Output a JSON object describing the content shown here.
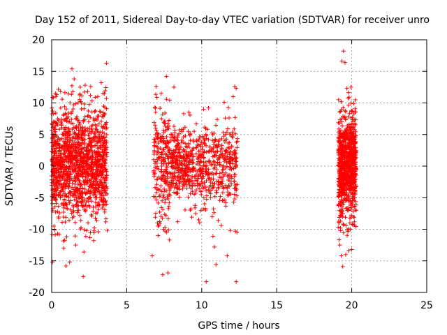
{
  "chart_data": {
    "type": "scatter",
    "title": "Day 152 of 2011, Sidereal Day-to-day VTEC variation (SDTVAR) for receiver unro",
    "xlabel": "GPS time / hours",
    "ylabel": "SDTVAR / TECUs",
    "xlim": [
      0,
      25
    ],
    "ylim": [
      -20,
      20
    ],
    "xticks": [
      0,
      5,
      10,
      15,
      20,
      25
    ],
    "yticks": [
      -20,
      -15,
      -10,
      -5,
      0,
      5,
      10,
      15,
      20
    ],
    "grid": true,
    "marker": "+",
    "color": "#ff0000",
    "series": [
      {
        "name": "SDTVAR",
        "points": [
          [
            0.05,
            -15.2
          ],
          [
            0.25,
            11.5
          ],
          [
            0.4,
            7.5
          ],
          [
            0.6,
            9.2
          ],
          [
            0.8,
            -13.0
          ],
          [
            0.95,
            -15.8
          ],
          [
            1.2,
            -15.2
          ],
          [
            1.35,
            15.4
          ],
          [
            1.6,
            -12.5
          ],
          [
            2.1,
            -17.5
          ],
          [
            2.15,
            -13.6
          ],
          [
            2.4,
            11.8
          ],
          [
            2.8,
            -11.8
          ],
          [
            3.3,
            13.2
          ],
          [
            3.65,
            16.3
          ],
          [
            3.7,
            -10.2
          ],
          [
            0.15,
            -9.5
          ],
          [
            0.5,
            -10.8
          ],
          [
            1.0,
            -11.2
          ],
          [
            1.9,
            12.5
          ],
          [
            2.6,
            12.6
          ],
          [
            3.1,
            -10.4
          ],
          [
            1.5,
            13.8
          ],
          [
            0.7,
            10.6
          ],
          [
            2.9,
            10.9
          ],
          [
            6.7,
            -14.2
          ],
          [
            6.8,
            -4.8
          ],
          [
            7.1,
            -9.5
          ],
          [
            7.3,
            11.5
          ],
          [
            7.4,
            -17.2
          ],
          [
            7.55,
            -10.3
          ],
          [
            7.65,
            14.2
          ],
          [
            7.75,
            -16.9
          ],
          [
            7.85,
            -11.7
          ],
          [
            8.15,
            12.5
          ],
          [
            8.4,
            -8.8
          ],
          [
            9.1,
            5.5
          ],
          [
            9.6,
            -7.5
          ],
          [
            9.8,
            -8.5
          ],
          [
            10.1,
            -6.8
          ],
          [
            10.3,
            -18.3
          ],
          [
            10.45,
            9.2
          ],
          [
            10.7,
            -8.0
          ],
          [
            10.75,
            -11.1
          ],
          [
            10.85,
            -12.8
          ],
          [
            10.95,
            -15.6
          ],
          [
            11.3,
            -9.4
          ],
          [
            11.5,
            10.1
          ],
          [
            11.7,
            -14.2
          ],
          [
            11.9,
            -10.2
          ],
          [
            12.1,
            11.0
          ],
          [
            12.2,
            12.6
          ],
          [
            12.25,
            -10.3
          ],
          [
            12.3,
            -18.3
          ],
          [
            12.35,
            -10.5
          ],
          [
            12.2,
            -5.2
          ],
          [
            12.3,
            12.3
          ],
          [
            11.1,
            -8.6
          ],
          [
            8.8,
            8.3
          ],
          [
            19.2,
            -12.5
          ],
          [
            19.3,
            -14.2
          ],
          [
            19.35,
            16.6
          ],
          [
            19.45,
            18.2
          ],
          [
            19.55,
            16.4
          ],
          [
            19.6,
            -14.0
          ],
          [
            19.4,
            -15.9
          ],
          [
            19.8,
            -13.4
          ],
          [
            20.0,
            -13.2
          ],
          [
            19.95,
            12.5
          ],
          [
            19.3,
            10.2
          ],
          [
            19.9,
            -10.0
          ],
          [
            20.05,
            -9.2
          ],
          [
            19.25,
            -9.8
          ],
          [
            19.7,
            -10.1
          ]
        ]
      }
    ],
    "clusters": [
      {
        "x": [
          0,
          3.7
        ],
        "y_core": [
          -3,
          4
        ],
        "y_spread": 3.5,
        "count": 1400
      },
      {
        "x": [
          6.8,
          7.9
        ],
        "y_core": [
          -4,
          5
        ],
        "y_spread": 3.5,
        "count": 220
      },
      {
        "x": [
          7.9,
          9.2
        ],
        "y_core": [
          -1,
          2
        ],
        "y_spread": 2.5,
        "count": 260
      },
      {
        "x": [
          9.2,
          12.4
        ],
        "y_core": [
          -2,
          2.5
        ],
        "y_spread": 3.0,
        "count": 450
      },
      {
        "x": [
          19.1,
          20.3
        ],
        "y_core": [
          -3,
          3
        ],
        "y_spread": 3.2,
        "count": 900
      }
    ]
  }
}
